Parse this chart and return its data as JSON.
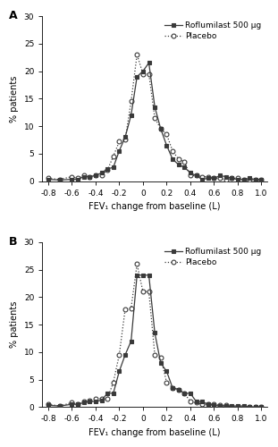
{
  "panel_A": {
    "x": [
      -0.8,
      -0.7,
      -0.6,
      -0.55,
      -0.5,
      -0.45,
      -0.4,
      -0.35,
      -0.3,
      -0.25,
      -0.2,
      -0.15,
      -0.1,
      -0.05,
      0.0,
      0.05,
      0.1,
      0.15,
      0.2,
      0.25,
      0.3,
      0.35,
      0.4,
      0.45,
      0.5,
      0.55,
      0.6,
      0.65,
      0.7,
      0.75,
      0.8,
      0.85,
      0.9,
      0.95,
      1.0
    ],
    "roflumilast": [
      0.3,
      0.2,
      0.3,
      0.3,
      0.8,
      0.8,
      1.0,
      1.5,
      2.2,
      2.5,
      5.5,
      8.0,
      12.0,
      19.0,
      20.0,
      21.5,
      13.5,
      9.5,
      6.5,
      4.0,
      3.0,
      2.5,
      1.5,
      1.0,
      0.3,
      0.5,
      0.5,
      1.0,
      0.8,
      0.5,
      0.3,
      0.3,
      0.5,
      0.3,
      0.3
    ],
    "placebo": [
      0.5,
      0.3,
      0.8,
      0.5,
      1.0,
      0.8,
      1.0,
      1.0,
      2.0,
      4.5,
      7.2,
      7.5,
      14.5,
      23.0,
      19.5,
      19.5,
      11.5,
      9.5,
      8.5,
      5.5,
      4.0,
      3.5,
      1.0,
      1.0,
      0.8,
      0.8,
      0.5,
      0.5,
      0.3,
      0.5,
      0.5,
      0.3,
      0.3,
      0.3,
      0.3
    ]
  },
  "panel_B": {
    "x": [
      -0.8,
      -0.7,
      -0.6,
      -0.55,
      -0.5,
      -0.45,
      -0.4,
      -0.35,
      -0.3,
      -0.25,
      -0.2,
      -0.15,
      -0.1,
      -0.05,
      0.0,
      0.05,
      0.1,
      0.15,
      0.2,
      0.25,
      0.3,
      0.35,
      0.4,
      0.45,
      0.5,
      0.55,
      0.6,
      0.65,
      0.7,
      0.75,
      0.8,
      0.85,
      0.9,
      0.95,
      1.0
    ],
    "roflumilast": [
      0.3,
      0.2,
      0.5,
      0.5,
      0.8,
      1.0,
      1.0,
      1.2,
      2.5,
      2.5,
      6.5,
      9.5,
      12.0,
      24.0,
      24.0,
      24.0,
      13.5,
      8.0,
      6.5,
      3.5,
      3.2,
      2.5,
      2.5,
      1.0,
      1.0,
      0.5,
      0.3,
      0.2,
      0.2,
      0.2,
      0.2,
      0.2,
      0.0,
      0.0,
      0.0
    ],
    "placebo": [
      0.5,
      0.2,
      0.8,
      0.5,
      1.0,
      1.2,
      1.5,
      1.5,
      1.5,
      4.5,
      9.5,
      17.8,
      18.0,
      26.0,
      21.0,
      21.0,
      9.5,
      9.0,
      4.5,
      3.5,
      3.2,
      2.5,
      1.0,
      0.8,
      0.5,
      0.5,
      0.5,
      0.3,
      0.3,
      0.0,
      0.0,
      0.0,
      0.0,
      0.0,
      0.0
    ]
  },
  "xlim": [
    -0.85,
    1.05
  ],
  "ylim_A": [
    0,
    30
  ],
  "ylim_B": [
    0,
    30
  ],
  "xticks": [
    -0.8,
    -0.6,
    -0.4,
    -0.2,
    0.0,
    0.2,
    0.4,
    0.6,
    0.8,
    1.0
  ],
  "yticks": [
    0,
    5,
    10,
    15,
    20,
    25,
    30
  ],
  "xlabel": "FEV₁ change from baseline (L)",
  "ylabel": "% patients",
  "legend_rof": "Roflumilast 500 μg",
  "legend_pla": "Placebo",
  "label_A": "A",
  "label_B": "B",
  "line_color": "#3a3a3a",
  "marker_rof": "s",
  "marker_pla": "o",
  "markersize": 3.5,
  "fontsize_axis": 7.0,
  "fontsize_label": 9,
  "fontsize_legend": 6.5
}
